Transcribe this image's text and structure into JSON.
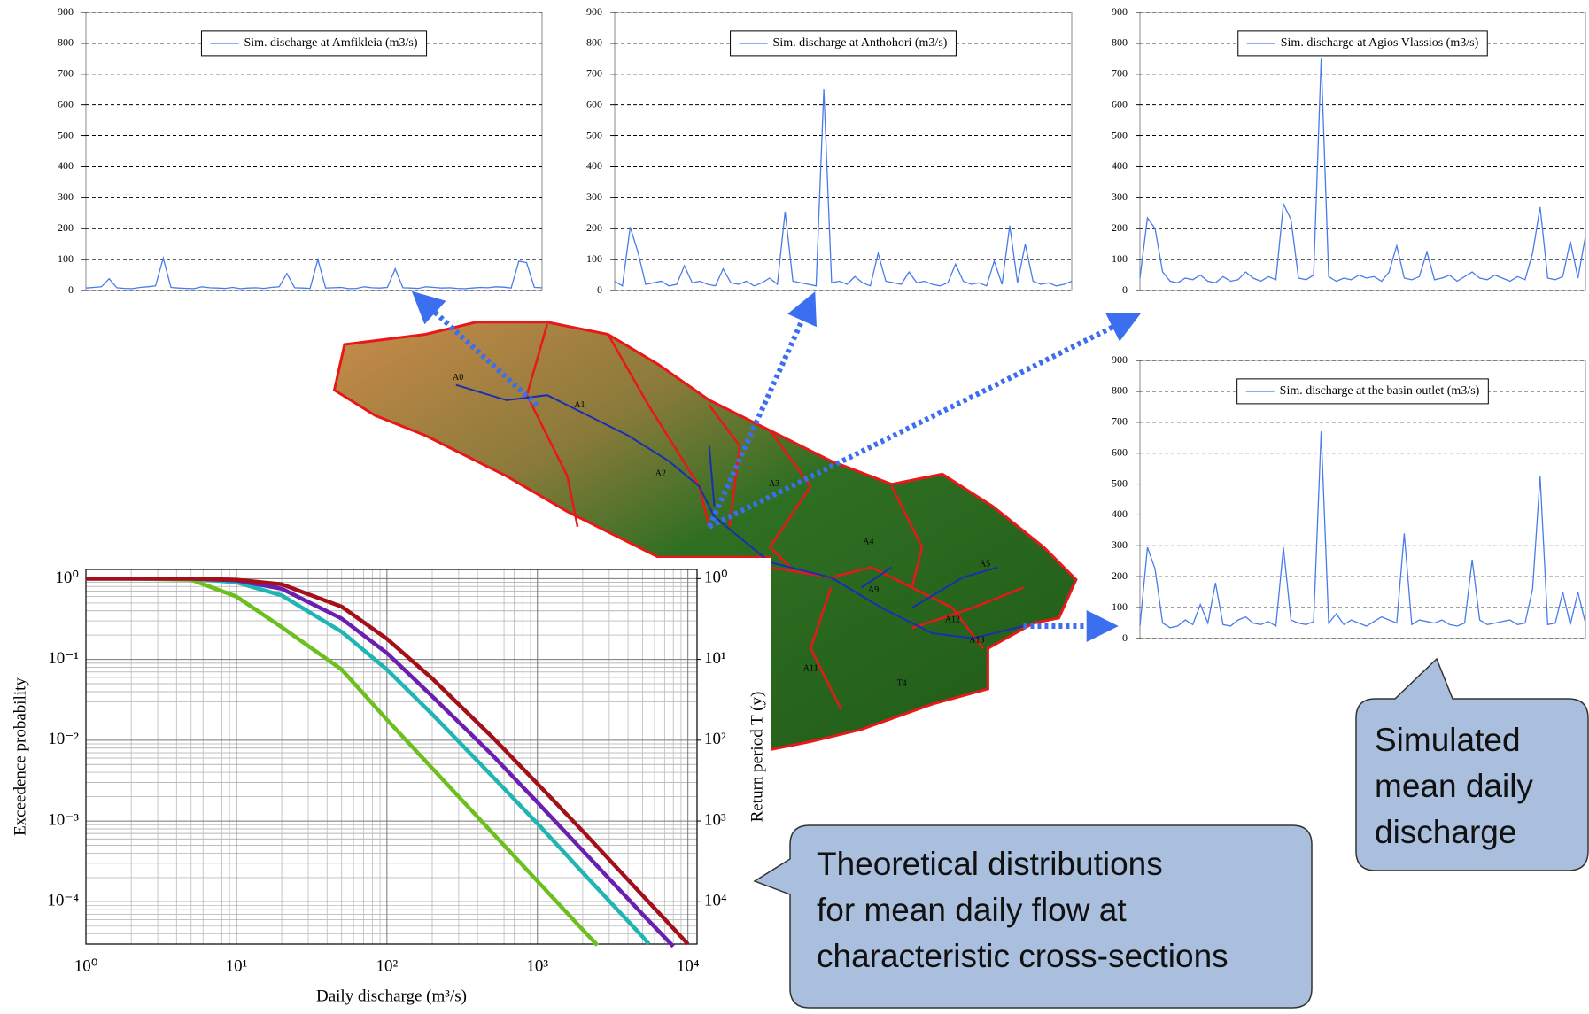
{
  "chart_data": [
    {
      "type": "line",
      "series": [
        {
          "name": "Sim. discharge at Amfikleia (m3/s)",
          "color": "#4a7bea",
          "values": [
            8,
            10,
            12,
            38,
            9,
            7,
            6,
            10,
            12,
            15,
            105,
            10,
            8,
            7,
            6,
            12,
            9,
            8,
            7,
            10,
            6,
            8,
            9,
            7,
            10,
            12,
            55,
            9,
            8,
            7,
            100,
            8,
            9,
            10,
            6,
            7,
            12,
            9,
            8,
            10,
            70,
            9,
            8,
            7,
            12,
            10,
            8,
            9,
            7,
            6,
            8,
            10,
            9,
            12,
            11,
            8,
            95,
            90,
            10,
            9
          ]
        }
      ],
      "ylim": [
        0,
        900
      ],
      "yticks": [
        0,
        100,
        200,
        300,
        400,
        500,
        600,
        700,
        800,
        900
      ],
      "grid": true,
      "legend": "top"
    },
    {
      "type": "line",
      "series": [
        {
          "name": "Sim. discharge at Anthohori (m3/s)",
          "color": "#4a7bea",
          "values": [
            30,
            15,
            205,
            125,
            20,
            25,
            30,
            15,
            20,
            80,
            25,
            30,
            20,
            15,
            70,
            25,
            20,
            30,
            15,
            25,
            40,
            20,
            255,
            30,
            25,
            20,
            15,
            650,
            25,
            30,
            20,
            45,
            25,
            15,
            120,
            30,
            25,
            20,
            60,
            25,
            30,
            20,
            15,
            25,
            85,
            30,
            20,
            25,
            15,
            95,
            20,
            210,
            25,
            150,
            30,
            20,
            25,
            15,
            20,
            30
          ]
        }
      ],
      "ylim": [
        0,
        900
      ],
      "yticks": [
        0,
        100,
        200,
        300,
        400,
        500,
        600,
        700,
        800,
        900
      ],
      "grid": true,
      "legend": "top"
    },
    {
      "type": "line",
      "series": [
        {
          "name": "Sim. discharge at Agios Vlassios (m3/s)",
          "color": "#4a7bea",
          "values": [
            40,
            235,
            200,
            60,
            30,
            25,
            40,
            35,
            50,
            30,
            25,
            45,
            30,
            35,
            60,
            40,
            30,
            45,
            35,
            280,
            230,
            40,
            35,
            50,
            750,
            45,
            30,
            40,
            35,
            50,
            40,
            45,
            30,
            60,
            145,
            40,
            35,
            45,
            125,
            35,
            40,
            50,
            30,
            45,
            60,
            40,
            35,
            50,
            40,
            30,
            45,
            35,
            120,
            270,
            40,
            35,
            45,
            160,
            40,
            175
          ]
        }
      ],
      "ylim": [
        0,
        900
      ],
      "yticks": [
        0,
        100,
        200,
        300,
        400,
        500,
        600,
        700,
        800,
        900
      ],
      "grid": true,
      "legend": "top"
    },
    {
      "type": "line",
      "series": [
        {
          "name": "Sim. discharge at the basin outlet (m3/s)",
          "color": "#4a7bea",
          "values": [
            40,
            295,
            225,
            50,
            35,
            40,
            60,
            45,
            110,
            50,
            180,
            45,
            40,
            60,
            70,
            50,
            45,
            55,
            40,
            295,
            60,
            50,
            45,
            55,
            670,
            50,
            80,
            45,
            60,
            50,
            40,
            55,
            70,
            60,
            50,
            340,
            45,
            60,
            55,
            50,
            60,
            45,
            40,
            50,
            255,
            60,
            45,
            50,
            55,
            60,
            45,
            50,
            160,
            525,
            45,
            50,
            150,
            45,
            150,
            50
          ]
        }
      ],
      "ylim": [
        0,
        900
      ],
      "yticks": [
        0,
        100,
        200,
        300,
        400,
        500,
        600,
        700,
        800,
        900
      ],
      "grid": true,
      "legend": "top"
    },
    {
      "type": "logline",
      "xlabel": "Daily discharge (m³/s)",
      "ylabel": "Exceedence probability",
      "y2label": "Return period T (y)",
      "xlog": true,
      "ylog": true,
      "grid": true,
      "xlim": [
        1,
        11500
      ],
      "ylim": [
        3e-05,
        1.3
      ],
      "y2lim": [
        33333,
        0.77
      ],
      "xticks": [
        {
          "value": 1,
          "label": "10⁰"
        },
        {
          "value": 10,
          "label": "10¹"
        },
        {
          "value": 100,
          "label": "10²"
        },
        {
          "value": 1000,
          "label": "10³"
        },
        {
          "value": 10000,
          "label": "10⁴"
        }
      ],
      "yticks": [
        {
          "value": 1,
          "label": "10⁰"
        },
        {
          "value": 0.1,
          "label": "10⁻¹"
        },
        {
          "value": 0.01,
          "label": "10⁻²"
        },
        {
          "value": 0.001,
          "label": "10⁻³"
        },
        {
          "value": 0.0001,
          "label": "10⁻⁴"
        }
      ],
      "y2ticks": [
        {
          "value": 1,
          "label": "10⁰"
        },
        {
          "value": 10,
          "label": "10¹"
        },
        {
          "value": 100,
          "label": "10²"
        },
        {
          "value": 1000,
          "label": "10³"
        },
        {
          "value": 10000,
          "label": "10⁴"
        }
      ],
      "series": [
        {
          "color": "#6cbf1e",
          "x": [
            1,
            2,
            5,
            10,
            20,
            50,
            100,
            200,
            500,
            1000,
            2000,
            2500
          ],
          "values": [
            1,
            1,
            0.97,
            0.6,
            0.25,
            0.075,
            0.018,
            0.0045,
            0.00072,
            0.00018,
            4.5e-05,
            2.9e-05
          ]
        },
        {
          "color": "#1fb5b5",
          "x": [
            1,
            2,
            5,
            10,
            20,
            50,
            100,
            200,
            500,
            1000,
            2000,
            5000,
            5500
          ],
          "values": [
            1,
            1,
            1,
            0.9,
            0.62,
            0.22,
            0.075,
            0.021,
            0.0036,
            0.00093,
            0.00023,
            3.7e-05,
            3e-05
          ]
        },
        {
          "color": "#6a1fb0",
          "x": [
            1,
            2,
            5,
            10,
            20,
            50,
            100,
            200,
            500,
            1000,
            2000,
            5000,
            8000
          ],
          "values": [
            1,
            1,
            1,
            0.95,
            0.75,
            0.32,
            0.12,
            0.035,
            0.0066,
            0.0017,
            0.00043,
            7e-05,
            2.8e-05
          ]
        },
        {
          "color": "#a3101a",
          "x": [
            1,
            2,
            5,
            10,
            20,
            50,
            100,
            200,
            500,
            1000,
            2000,
            5000,
            10000
          ],
          "values": [
            1,
            1,
            1,
            0.97,
            0.85,
            0.45,
            0.18,
            0.058,
            0.011,
            0.0029,
            0.00075,
            0.00012,
            3e-05
          ]
        }
      ]
    }
  ],
  "map": {
    "labels": [
      "A0",
      "A1",
      "A2",
      "A3",
      "A4",
      "A5",
      "A9",
      "A11",
      "A12",
      "A13",
      "T4"
    ]
  },
  "callouts": [
    {
      "lines": [
        "Theoretical distributions",
        "for mean daily flow at",
        "characteristic cross-sections"
      ]
    },
    {
      "lines": [
        "Simulated",
        "mean daily",
        "discharge"
      ]
    }
  ]
}
